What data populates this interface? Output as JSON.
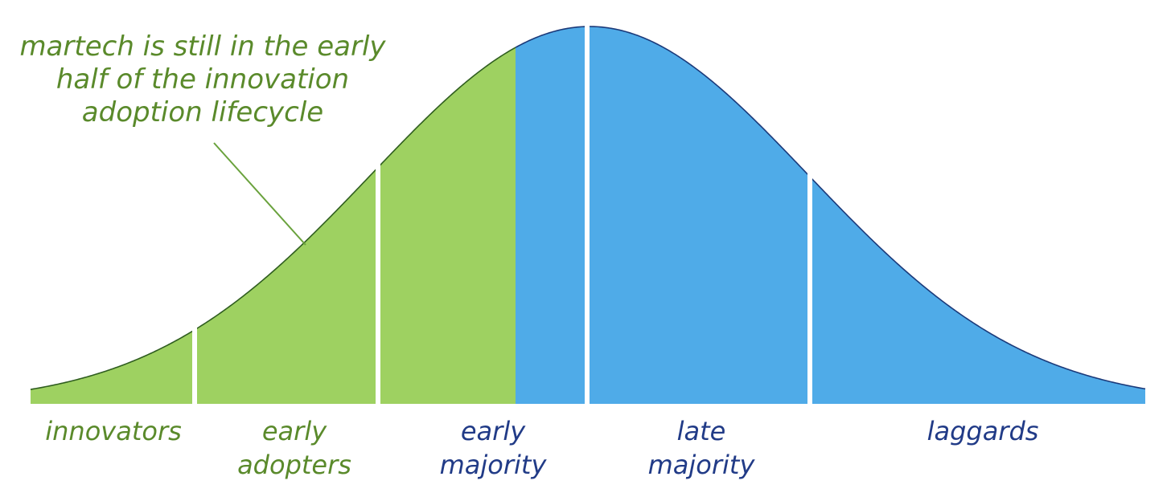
{
  "annotation": {
    "lines": [
      "martech is still in the early",
      "half of the innovation",
      "adoption lifecycle"
    ]
  },
  "segments": [
    {
      "label_lines": [
        "innovators"
      ],
      "phase": "early"
    },
    {
      "label_lines": [
        "early",
        "adopters"
      ],
      "phase": "early"
    },
    {
      "label_lines": [
        "early",
        "majority"
      ],
      "phase": "early"
    },
    {
      "label_lines": [
        "early",
        "majority"
      ],
      "phase": "late"
    },
    {
      "label_lines": [
        "late",
        "majority"
      ],
      "phase": "late"
    },
    {
      "label_lines": [
        "laggards"
      ],
      "phase": "late"
    }
  ],
  "colors": {
    "early_fill": "#9ED161",
    "late_fill": "#4FABE8",
    "early_text": "#5A8A2B",
    "late_text": "#213B87",
    "curve_stroke": "#2F5D1F",
    "late_curve_stroke": "#1B3A7A",
    "divider": "#ffffff",
    "pointer": "#6AA23D"
  }
}
